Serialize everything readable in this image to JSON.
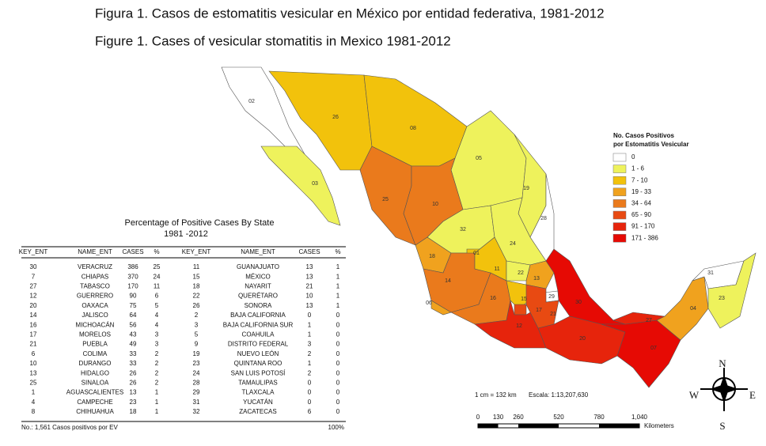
{
  "header": {
    "title_es": "Figura 1. Casos de estomatitis vesicular en México por entidad federativa, 1981-2012",
    "title_en": "Figure 1. Cases of vesicular stomatitis in Mexico 1981-2012"
  },
  "map": {
    "state_keys": [
      "02",
      "03",
      "26",
      "08",
      "05",
      "19",
      "28",
      "25",
      "10",
      "32",
      "24",
      "18",
      "01",
      "14",
      "11",
      "22",
      "13",
      "06",
      "16",
      "15",
      "29",
      "17",
      "21",
      "30",
      "12",
      "20",
      "07",
      "27",
      "04",
      "31",
      "23"
    ]
  },
  "legend": {
    "title": [
      "No. Casos Positivos",
      "por Estomatitis Vesicular"
    ],
    "items": [
      {
        "label": "0",
        "color": "#ffffff"
      },
      {
        "label": "1 - 6",
        "color": "#eef25c"
      },
      {
        "label": "7 - 10",
        "color": "#f2c20c"
      },
      {
        "label": "19 - 33",
        "color": "#f0a21e"
      },
      {
        "label": "34 - 64",
        "color": "#ea7a1c"
      },
      {
        "label": "65 - 90",
        "color": "#e84a12"
      },
      {
        "label": "91 - 170",
        "color": "#e6240c"
      },
      {
        "label": "171 - 386",
        "color": "#e60a04"
      }
    ]
  },
  "table": {
    "title": [
      "Percentage of Positive Cases By State",
      "1981  -2012"
    ],
    "columns": [
      "KEY_ENT",
      "NAME_ENT",
      "CASES",
      "%",
      "KEY_ENT",
      "NAME_ENT",
      "CASES",
      "%"
    ],
    "rows": [
      [
        30,
        "VERACRUZ",
        386,
        25,
        11,
        "GUANAJUATO",
        13,
        1
      ],
      [
        7,
        "CHIAPAS",
        370,
        24,
        15,
        "MÉXICO",
        13,
        1
      ],
      [
        27,
        "TABASCO",
        170,
        11,
        18,
        "NAYARIT",
        21,
        1
      ],
      [
        12,
        "GUERRERO",
        90,
        6,
        22,
        "QUERÉTARO",
        10,
        1
      ],
      [
        20,
        "OAXACA",
        75,
        5,
        26,
        "SONORA",
        13,
        1
      ],
      [
        14,
        "JALISCO",
        64,
        4,
        2,
        "BAJA CALIFORNIA",
        0,
        0
      ],
      [
        16,
        "MICHOACÁN",
        56,
        4,
        3,
        "BAJA CALIFORNIA SUR",
        1,
        0
      ],
      [
        17,
        "MORELOS",
        43,
        3,
        5,
        "COAHUILA",
        1,
        0
      ],
      [
        21,
        "PUEBLA",
        49,
        3,
        9,
        "DISTRITO FEDERAL",
        3,
        0
      ],
      [
        6,
        "COLIMA",
        33,
        2,
        19,
        "NUEVO LEÓN",
        2,
        0
      ],
      [
        10,
        "DURANGO",
        33,
        2,
        23,
        "QUINTANA ROO",
        1,
        0
      ],
      [
        13,
        "HIDALGO",
        26,
        2,
        24,
        "SAN LUIS POTOSÍ",
        2,
        0
      ],
      [
        25,
        "SINALOA",
        26,
        2,
        28,
        "TAMAULIPAS",
        0,
        0
      ],
      [
        1,
        "AGUASCALIENTES",
        13,
        1,
        29,
        "TLAXCALA",
        0,
        0
      ],
      [
        4,
        "CAMPECHE",
        23,
        1,
        31,
        "YUCATÁN",
        0,
        0
      ],
      [
        8,
        "CHIHUAHUA",
        18,
        1,
        32,
        "ZACATECAS",
        6,
        0
      ]
    ],
    "footer": "No.: 1,561 Casos positivos por EV",
    "footer_total": "100%"
  },
  "scale": {
    "ratio": "1 cm = 132 km",
    "scale": "Escala: 1:13,207,630",
    "ticks": [
      "0",
      "130",
      "260",
      "520",
      "780",
      "1,040"
    ],
    "unit": "Kilometers"
  },
  "compass": {
    "n": "N",
    "s": "S",
    "e": "E",
    "w": "W"
  }
}
